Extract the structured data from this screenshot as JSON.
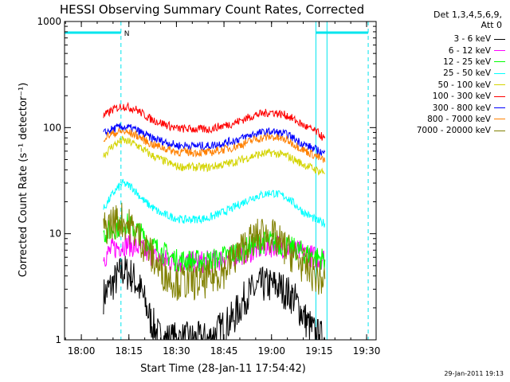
{
  "chart_data": {
    "type": "line",
    "title": "HESSI Observing Summary Count Rates, Corrected",
    "xlabel": "Start Time (28-Jan-11 17:54:42)",
    "ylabel": "Corrected Count Rate (s⁻¹ detector⁻¹)",
    "y_scale": "log",
    "ylim": [
      1,
      1000
    ],
    "xlim_minutes": [
      "17:54:42",
      "19:33:00"
    ],
    "x_ticks": [
      "18:00",
      "18:15",
      "18:30",
      "18:45",
      "19:00",
      "19:15",
      "19:30"
    ],
    "y_ticks": [
      "1",
      "10",
      "100",
      "1000"
    ],
    "legend_header": [
      "Det 1,3,4,5,6,9,",
      "Att 0"
    ],
    "legend_position": "right",
    "timestamp": "29-Jan-2011 19:13",
    "annotation": "N",
    "markers": {
      "night_segments": [
        [
          "17:54:42",
          "18:12:30"
        ],
        [
          "19:14:00",
          "19:30:30"
        ]
      ],
      "dashed_lines": [
        "18:12:30",
        "19:30:30"
      ],
      "solid_lines": [
        "17:54:42",
        "19:14:00",
        "19:17:30"
      ]
    },
    "series": [
      {
        "name": "3 - 6 keV",
        "color": "#000000",
        "start": "18:07",
        "end": "19:17",
        "points": [
          [
            "18:07",
            2.6
          ],
          [
            "18:10",
            3.4
          ],
          [
            "18:13",
            4.5
          ],
          [
            "18:16",
            4.0
          ],
          [
            "18:19",
            2.8
          ],
          [
            "18:22",
            1.5
          ],
          [
            "18:25",
            1.0
          ],
          [
            "18:40",
            1.0
          ],
          [
            "18:48",
            1.6
          ],
          [
            "18:52",
            2.6
          ],
          [
            "18:57",
            3.3
          ],
          [
            "19:02",
            3.2
          ],
          [
            "19:07",
            2.5
          ],
          [
            "19:11",
            1.5
          ],
          [
            "19:14",
            1.1
          ],
          [
            "19:17",
            1.0
          ]
        ]
      },
      {
        "name": "6 - 12 keV",
        "color": "#ff00ff",
        "start": "18:07",
        "end": "19:17",
        "points": [
          [
            "18:07",
            6.0
          ],
          [
            "18:10",
            7.2
          ],
          [
            "18:14",
            8.0
          ],
          [
            "18:18",
            7.4
          ],
          [
            "18:24",
            5.8
          ],
          [
            "18:32",
            5.3
          ],
          [
            "18:42",
            5.5
          ],
          [
            "18:50",
            6.4
          ],
          [
            "18:58",
            7.5
          ],
          [
            "19:02",
            7.8
          ],
          [
            "19:08",
            6.8
          ],
          [
            "19:14",
            6.0
          ],
          [
            "19:17",
            5.8
          ]
        ]
      },
      {
        "name": "12 - 25 keV",
        "color": "#00ff00",
        "start": "18:07",
        "end": "19:17",
        "points": [
          [
            "18:07",
            10.0
          ],
          [
            "18:11",
            11.5
          ],
          [
            "18:14",
            12.5
          ],
          [
            "18:18",
            10.5
          ],
          [
            "18:23",
            7.5
          ],
          [
            "18:30",
            5.6
          ],
          [
            "18:40",
            5.5
          ],
          [
            "18:48",
            6.5
          ],
          [
            "18:55",
            8.0
          ],
          [
            "19:00",
            8.5
          ],
          [
            "19:07",
            7.2
          ],
          [
            "19:14",
            6.0
          ],
          [
            "19:17",
            5.8
          ]
        ]
      },
      {
        "name": "25 - 50 keV",
        "color": "#00ffff",
        "start": "18:07",
        "end": "19:17",
        "points": [
          [
            "18:07",
            17.0
          ],
          [
            "18:10",
            24.0
          ],
          [
            "18:13",
            30.0
          ],
          [
            "18:16",
            27.5
          ],
          [
            "18:20",
            20.0
          ],
          [
            "18:25",
            15.5
          ],
          [
            "18:32",
            13.5
          ],
          [
            "18:40",
            14.0
          ],
          [
            "18:47",
            17.0
          ],
          [
            "18:54",
            22.0
          ],
          [
            "19:00",
            24.5
          ],
          [
            "19:05",
            22.0
          ],
          [
            "19:10",
            16.0
          ],
          [
            "19:15",
            13.0
          ],
          [
            "19:17",
            12.5
          ]
        ]
      },
      {
        "name": "50 - 100 keV",
        "color": "#d4d400",
        "start": "18:07",
        "end": "19:17",
        "points": [
          [
            "18:07",
            55.0
          ],
          [
            "18:10",
            68.0
          ],
          [
            "18:13",
            76.0
          ],
          [
            "18:17",
            70.0
          ],
          [
            "18:22",
            55.0
          ],
          [
            "18:30",
            43.0
          ],
          [
            "18:40",
            42.0
          ],
          [
            "18:48",
            47.0
          ],
          [
            "18:55",
            55.0
          ],
          [
            "19:00",
            58.0
          ],
          [
            "19:05",
            54.0
          ],
          [
            "19:10",
            45.0
          ],
          [
            "19:15",
            39.0
          ],
          [
            "19:17",
            38.0
          ]
        ]
      },
      {
        "name": "100 - 300 keV",
        "color": "#ff0000",
        "start": "18:07",
        "end": "19:17",
        "points": [
          [
            "18:07",
            128.0
          ],
          [
            "18:10",
            148.0
          ],
          [
            "18:13",
            160.0
          ],
          [
            "18:17",
            150.0
          ],
          [
            "18:22",
            120.0
          ],
          [
            "18:30",
            98.0
          ],
          [
            "18:40",
            96.0
          ],
          [
            "18:48",
            110.0
          ],
          [
            "18:55",
            132.0
          ],
          [
            "19:00",
            140.0
          ],
          [
            "19:05",
            130.0
          ],
          [
            "19:10",
            105.0
          ],
          [
            "19:15",
            88.0
          ],
          [
            "19:17",
            76.0
          ]
        ]
      },
      {
        "name": "300 - 800 keV",
        "color": "#0000ff",
        "start": "18:07",
        "end": "19:17",
        "points": [
          [
            "18:07",
            88.0
          ],
          [
            "18:10",
            97.0
          ],
          [
            "18:13",
            102.0
          ],
          [
            "18:17",
            96.0
          ],
          [
            "18:22",
            80.0
          ],
          [
            "18:30",
            68.0
          ],
          [
            "18:40",
            67.0
          ],
          [
            "18:48",
            75.0
          ],
          [
            "18:55",
            88.0
          ],
          [
            "19:00",
            92.0
          ],
          [
            "19:05",
            86.0
          ],
          [
            "19:10",
            70.0
          ],
          [
            "19:15",
            60.0
          ],
          [
            "19:17",
            56.0
          ]
        ]
      },
      {
        "name": "800 - 7000 keV",
        "color": "#ff8000",
        "start": "18:07",
        "end": "19:17",
        "points": [
          [
            "18:07",
            80.0
          ],
          [
            "18:10",
            88.0
          ],
          [
            "18:13",
            92.0
          ],
          [
            "18:17",
            86.0
          ],
          [
            "18:22",
            70.0
          ],
          [
            "18:30",
            59.0
          ],
          [
            "18:40",
            58.0
          ],
          [
            "18:48",
            65.0
          ],
          [
            "18:55",
            78.0
          ],
          [
            "19:00",
            82.0
          ],
          [
            "19:05",
            76.0
          ],
          [
            "19:10",
            62.0
          ],
          [
            "19:15",
            52.0
          ],
          [
            "19:17",
            48.0
          ]
        ]
      },
      {
        "name": "7000 - 20000 keV",
        "color": "#808000",
        "start": "18:07",
        "end": "19:17",
        "points": [
          [
            "18:07",
            11.0
          ],
          [
            "18:10",
            13.0
          ],
          [
            "18:13",
            13.5
          ],
          [
            "18:17",
            10.5
          ],
          [
            "18:21",
            7.0
          ],
          [
            "18:25",
            4.5
          ],
          [
            "18:30",
            3.5
          ],
          [
            "18:38",
            3.5
          ],
          [
            "18:45",
            4.5
          ],
          [
            "18:52",
            8.0
          ],
          [
            "18:57",
            10.0
          ],
          [
            "19:00",
            9.5
          ],
          [
            "19:05",
            7.0
          ],
          [
            "19:10",
            5.0
          ],
          [
            "19:15",
            3.8
          ],
          [
            "19:17",
            3.5
          ]
        ]
      }
    ]
  },
  "colors": {
    "axis": "#000000",
    "marker": "#00e5ee"
  }
}
